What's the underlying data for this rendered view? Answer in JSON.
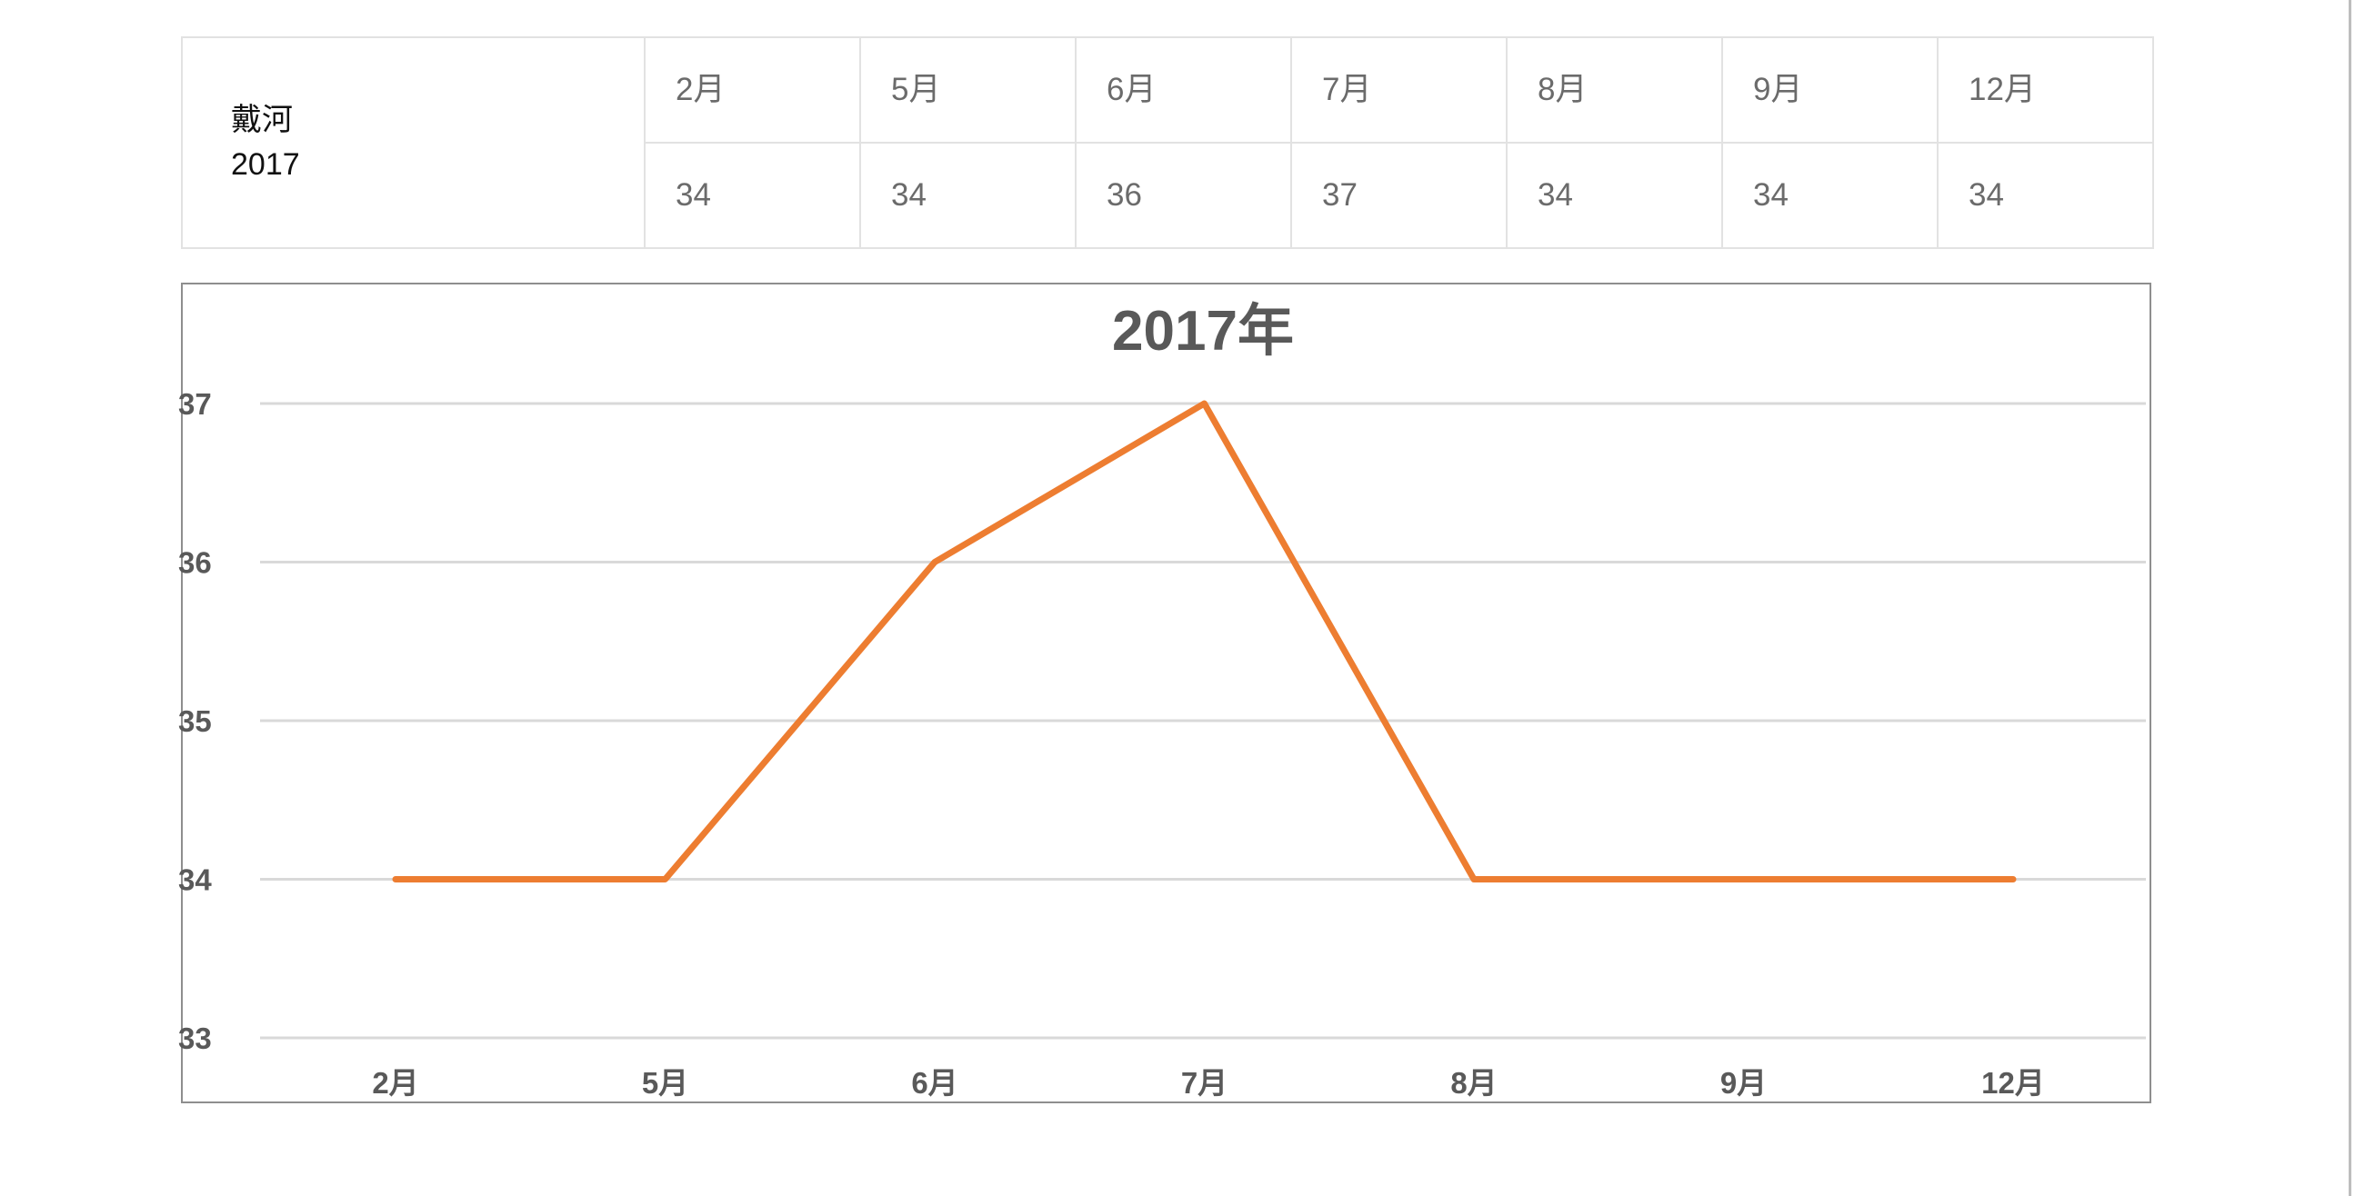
{
  "table": {
    "label_line1": "戴河",
    "label_line2": "2017",
    "months": [
      "2月",
      "5月",
      "6月",
      "7月",
      "8月",
      "9月",
      "12月"
    ],
    "values": [
      "34",
      "34",
      "36",
      "37",
      "34",
      "34",
      "34"
    ]
  },
  "chart_data": {
    "type": "line",
    "title": "2017年",
    "categories": [
      "2月",
      "5月",
      "6月",
      "7月",
      "8月",
      "9月",
      "12月"
    ],
    "series": [
      {
        "values": [
          34,
          34,
          36,
          37,
          34,
          34,
          34
        ],
        "color": "#ed7d31"
      }
    ],
    "ylim": [
      33,
      37
    ],
    "yticks": [
      33,
      34,
      35,
      36,
      37
    ],
    "xlabel": "",
    "ylabel": "",
    "grid": true,
    "legend": "none"
  }
}
